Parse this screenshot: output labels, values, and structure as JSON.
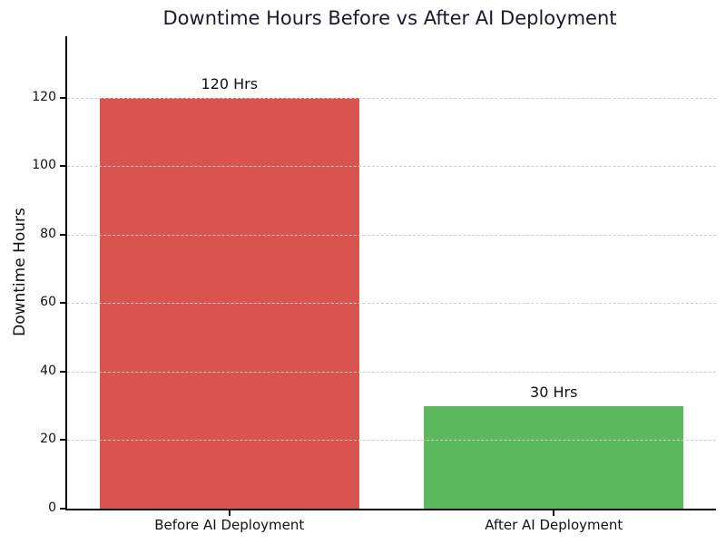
{
  "chart_data": {
    "type": "bar",
    "title": "Downtime Hours Before vs After AI Deployment",
    "categories": [
      "Before AI Deployment",
      "After AI Deployment"
    ],
    "values": [
      120,
      30
    ],
    "bar_labels": [
      "120 Hrs",
      "30 Hrs"
    ],
    "bar_colors": [
      "#d9534f",
      "#5cb85c"
    ],
    "xlabel": "",
    "ylabel": "Downtime Hours",
    "ylim": [
      0,
      138
    ],
    "yticks": [
      0,
      20,
      40,
      60,
      80,
      100,
      120
    ],
    "bar_width_fraction": 0.8,
    "grid": "horizontal-dashed",
    "grid_color": "#cccccc",
    "title_color": "#1a1a2e",
    "spine_color": "#0a0a0a",
    "legend": "none",
    "background_color": "#ffffff"
  }
}
